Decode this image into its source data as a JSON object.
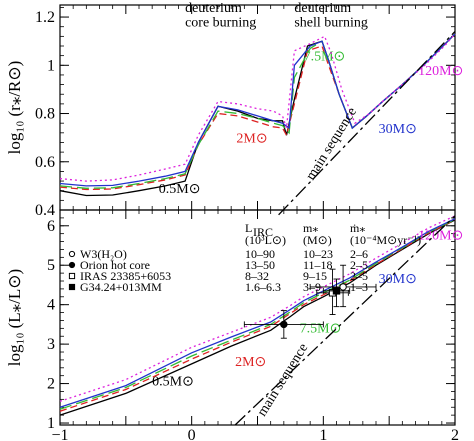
{
  "chart_data": [
    {
      "type": "line",
      "panel": "top",
      "ylabel": "log₁₀ (r⁎/R⊙)",
      "xlim": [
        -1,
        2
      ],
      "ylim": [
        0.4,
        1.25
      ],
      "yticks": [
        0.4,
        0.6,
        0.8,
        1,
        1.2
      ],
      "ytick_labels": [
        "0.4",
        "0.6",
        "0.8",
        "1",
        "1.2"
      ],
      "annotations": [
        {
          "text": "deuterium",
          "x": -0.05,
          "y": 1.22
        },
        {
          "text": "core burning",
          "x": -0.05,
          "y": 1.16
        },
        {
          "text": "deuterium",
          "x": 0.78,
          "y": 1.22
        },
        {
          "text": "shell burning",
          "x": 0.78,
          "y": 1.16
        },
        {
          "text": "main sequence",
          "x": 0.92,
          "y": 0.52
        }
      ],
      "series": [
        {
          "name": "0.5M⊙",
          "color": "#000000",
          "dash": "",
          "x": [
            -1,
            -0.8,
            -0.6,
            -0.4,
            -0.2,
            -0.05,
            0.05,
            0.2,
            0.35,
            0.5,
            0.62,
            0.69,
            0.72,
            0.78,
            0.88,
            0.99,
            1.04,
            1.12,
            1.22,
            1.33,
            1.45,
            1.6,
            1.75,
            1.9,
            2.0
          ],
          "values": [
            0.48,
            0.46,
            0.462,
            0.48,
            0.5,
            0.52,
            0.68,
            0.83,
            0.81,
            0.78,
            0.77,
            0.77,
            0.71,
            0.86,
            1.08,
            1.1,
            1.02,
            0.88,
            0.74,
            0.79,
            0.85,
            0.92,
            0.995,
            1.075,
            1.13
          ],
          "label_text": "0.5M⊙",
          "label_x": -0.25,
          "label_y": 0.47
        },
        {
          "name": "2M⊙",
          "color": "#dd2222",
          "dash": "7,4",
          "x": [
            -1,
            -0.8,
            -0.6,
            -0.4,
            -0.2,
            -0.05,
            0.05,
            0.2,
            0.35,
            0.5,
            0.62,
            0.69,
            0.72,
            0.78,
            0.88,
            0.99,
            1.04,
            1.12,
            1.22,
            1.33,
            1.45,
            1.6,
            1.75,
            1.9,
            2.0
          ],
          "values": [
            0.495,
            0.485,
            0.487,
            0.505,
            0.525,
            0.545,
            0.67,
            0.8,
            0.79,
            0.765,
            0.745,
            0.74,
            0.71,
            0.84,
            1.06,
            1.08,
            1.0,
            0.88,
            0.74,
            0.79,
            0.85,
            0.92,
            0.995,
            1.075,
            1.13
          ],
          "label_text": "2M⊙",
          "label_x": 0.34,
          "label_y": 0.68
        },
        {
          "name": "7.5M⊙",
          "color": "#33bb33",
          "dash": "12,5",
          "x": [
            -1,
            -0.8,
            -0.6,
            -0.4,
            -0.2,
            -0.05,
            0.05,
            0.2,
            0.35,
            0.5,
            0.62,
            0.69,
            0.74,
            0.78,
            0.9,
            0.99,
            1.04,
            1.12,
            1.22,
            1.33,
            1.45,
            1.6,
            1.75,
            1.9,
            2.0
          ],
          "values": [
            0.5,
            0.49,
            0.492,
            0.51,
            0.53,
            0.55,
            0.67,
            0.81,
            0.8,
            0.78,
            0.76,
            0.75,
            0.72,
            0.95,
            1.07,
            1.1,
            1.02,
            0.88,
            0.74,
            0.79,
            0.85,
            0.92,
            0.995,
            1.075,
            1.13
          ],
          "label_text": "7.5M⊙",
          "label_x": 0.85,
          "label_y": 1.02
        },
        {
          "name": "30M⊙",
          "color": "#2233cc",
          "dash": "",
          "x": [
            -1,
            -0.8,
            -0.6,
            -0.4,
            -0.2,
            -0.05,
            0.05,
            0.2,
            0.35,
            0.5,
            0.62,
            0.69,
            0.74,
            0.78,
            0.9,
            0.99,
            1.04,
            1.12,
            1.22,
            1.33,
            1.45,
            1.6,
            1.75,
            1.9,
            2.0
          ],
          "values": [
            0.51,
            0.5,
            0.502,
            0.52,
            0.54,
            0.56,
            0.68,
            0.83,
            0.815,
            0.79,
            0.77,
            0.76,
            0.74,
            1.0,
            1.08,
            1.1,
            1.02,
            0.88,
            0.74,
            0.79,
            0.85,
            0.92,
            0.995,
            1.075,
            1.13
          ],
          "label_text": "30M⊙",
          "label_x": 1.42,
          "label_y": 0.72
        },
        {
          "name": "120M⊙",
          "color": "#dd22dd",
          "dash": "2,3",
          "x": [
            -1,
            -0.8,
            -0.6,
            -0.4,
            -0.2,
            -0.05,
            0.05,
            0.2,
            0.35,
            0.5,
            0.62,
            0.69,
            0.72,
            0.78,
            0.9,
            1.01,
            1.06,
            1.14,
            1.24,
            1.35,
            1.47,
            1.62,
            1.77,
            1.92,
            2.0
          ],
          "values": [
            0.53,
            0.52,
            0.525,
            0.545,
            0.57,
            0.59,
            0.71,
            0.85,
            0.84,
            0.82,
            0.81,
            0.79,
            0.74,
            1.06,
            1.09,
            1.12,
            1.05,
            0.9,
            0.76,
            0.8,
            0.86,
            0.93,
            1.0,
            1.08,
            1.13
          ],
          "label_text": "120M⊙",
          "label_x": 1.72,
          "label_y": 0.96
        },
        {
          "name": "main sequence",
          "color": "#000000",
          "dash": "14,4,3,4",
          "x": [
            0.66,
            2.0
          ],
          "values": [
            0.38,
            1.14
          ]
        }
      ]
    },
    {
      "type": "line",
      "panel": "bottom",
      "xlabel": "",
      "ylabel": "log₁₀ (L⁎/L⊙)",
      "xlim": [
        -1,
        2
      ],
      "ylim": [
        0.95,
        6.4
      ],
      "xticks": [
        -1,
        -0.5,
        0,
        0.5,
        1,
        1.5,
        2
      ],
      "xtick_labels": [
        "−1",
        "",
        "0",
        "",
        "1",
        "",
        "2"
      ],
      "yticks": [
        1,
        2,
        3,
        4,
        5,
        6
      ],
      "ytick_labels": [
        "1",
        "2",
        "3",
        "4",
        "5",
        "6"
      ],
      "annotations": [
        {
          "text": "main sequence",
          "x": 0.55,
          "y": 1.15
        }
      ],
      "series": [
        {
          "name": "0.5M⊙",
          "color": "#000000",
          "dash": "",
          "x": [
            -1,
            -0.5,
            0,
            0.3,
            0.6,
            0.75,
            0.85,
            1.0,
            1.2,
            1.4,
            1.6,
            1.8,
            2.0
          ],
          "values": [
            1.2,
            1.75,
            2.5,
            2.95,
            3.35,
            3.7,
            3.95,
            4.2,
            4.55,
            5.0,
            5.4,
            5.8,
            6.15
          ],
          "label_text": "0.5M⊙",
          "label_x": -0.3,
          "label_y": 1.95
        },
        {
          "name": "2M⊙",
          "color": "#dd2222",
          "dash": "7,4",
          "x": [
            -1,
            -0.5,
            0,
            0.3,
            0.6,
            0.75,
            0.85,
            1.0,
            1.2,
            1.4,
            1.6,
            1.8,
            2.0
          ],
          "values": [
            1.3,
            1.85,
            2.62,
            3.05,
            3.45,
            3.78,
            4.0,
            4.25,
            4.6,
            5.02,
            5.42,
            5.82,
            6.15
          ],
          "label_text": "2M⊙",
          "label_x": 0.33,
          "label_y": 2.45
        },
        {
          "name": "7.5M⊙",
          "color": "#33bb33",
          "dash": "12,5",
          "x": [
            -1,
            -0.5,
            0,
            0.3,
            0.6,
            0.75,
            0.85,
            1.0,
            1.2,
            1.4,
            1.6,
            1.8,
            2.0
          ],
          "values": [
            1.35,
            1.9,
            2.7,
            3.1,
            3.5,
            3.82,
            4.05,
            4.3,
            4.62,
            5.05,
            5.44,
            5.84,
            6.16
          ],
          "label_text": "7.5M⊙",
          "label_x": 0.82,
          "label_y": 3.3
        },
        {
          "name": "30M⊙",
          "color": "#2233cc",
          "dash": "",
          "x": [
            -1,
            -0.5,
            0,
            0.3,
            0.6,
            0.75,
            0.85,
            1.0,
            1.2,
            1.4,
            1.6,
            1.8,
            2.0
          ],
          "values": [
            1.4,
            1.95,
            2.78,
            3.18,
            3.56,
            3.88,
            4.1,
            4.35,
            4.68,
            5.08,
            5.46,
            5.86,
            6.18
          ],
          "label_text": "30M⊙",
          "label_x": 1.42,
          "label_y": 4.55
        },
        {
          "name": "120M⊙",
          "color": "#dd22dd",
          "dash": "2,3",
          "x": [
            -1,
            -0.5,
            0,
            0.3,
            0.6,
            0.75,
            0.85,
            1.0,
            1.2,
            1.4,
            1.6,
            1.8,
            2.0
          ],
          "values": [
            1.55,
            2.1,
            2.92,
            3.3,
            3.68,
            3.98,
            4.2,
            4.45,
            4.78,
            5.18,
            5.56,
            5.95,
            6.25
          ],
          "label_text": "120M⊙",
          "label_x": 1.72,
          "label_y": 5.65
        },
        {
          "name": "main sequence",
          "color": "#000000",
          "dash": "14,4,3,4",
          "x": [
            0.33,
            2.0
          ],
          "values": [
            0.95,
            6.25
          ]
        }
      ],
      "points": [
        {
          "name": "W3(H₂O)",
          "marker": "open-circle",
          "x": 1.15,
          "y": 4.45,
          "xerr": 0.25,
          "yerr_low": 0.5,
          "yerr_high": 0.55
        },
        {
          "name": "Orion hot core",
          "marker": "filled-circle",
          "x": 0.7,
          "y": 3.5,
          "xerr": 0.3,
          "yerr_low": 0.35,
          "yerr_high": 0.35
        },
        {
          "name": "IRAS 23385+6053",
          "marker": "open-square",
          "x": 1.07,
          "y": 4.3,
          "xerr": 0.12,
          "yerr_low": 0.55,
          "yerr_high": 0.6
        },
        {
          "name": "G34.24+013MM",
          "marker": "filled-square",
          "x": 1.1,
          "y": 4.35,
          "xerr": 0.1,
          "yerr_low": 0.4,
          "yerr_high": 0.3
        }
      ],
      "legend_table": {
        "headers": [
          "L",
          "m⁎",
          "ṁ⁎"
        ],
        "header_sub": [
          "IRC",
          "",
          ""
        ],
        "units": [
          "(10³L⊙)",
          "(M⊙)",
          "(10⁻⁴M⊙yr⁻¹)"
        ],
        "rows": [
          {
            "name": "W3(H₂O)",
            "marker": "open-circle",
            "L": "10–90",
            "m": "10–23",
            "mdot": "2–6"
          },
          {
            "name": "Orion hot core",
            "marker": "filled-circle",
            "L": "13–50",
            "m": "11–18",
            "mdot": "2–5"
          },
          {
            "name": "IRAS 23385+6053",
            "marker": "open-square",
            "L": "8–32",
            "m": "9–15",
            "mdot": "2–5"
          },
          {
            "name": "G34.24+013MM",
            "marker": "filled-square",
            "L": "1.6–6.3",
            "m": "3–9",
            "mdot": "1–3"
          }
        ]
      }
    }
  ]
}
